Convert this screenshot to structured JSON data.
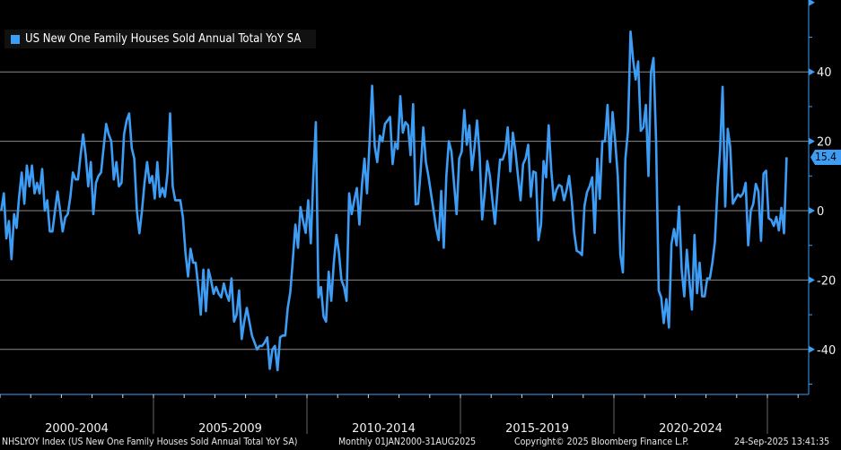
{
  "chart_data": {
    "type": "line",
    "title": "",
    "series": [
      {
        "name": "US New One Family Houses Sold Annual Total YoY SA",
        "color": "#3d9df5",
        "start": "2000-01",
        "frequency": "monthly",
        "values": [
          0,
          5,
          -8,
          -3,
          -14,
          -1,
          -5,
          4,
          11,
          2,
          13,
          7,
          13,
          5,
          8,
          5,
          12,
          0,
          3,
          -6,
          -6,
          0,
          5.5,
          0,
          -6,
          -2,
          -1,
          4,
          11,
          9,
          9,
          16,
          22,
          16,
          7,
          14,
          -1,
          8,
          10,
          11,
          18,
          25,
          22,
          20,
          9,
          14,
          7,
          8,
          22,
          26,
          28,
          18,
          15,
          0,
          -6.5,
          0,
          8,
          14,
          8,
          10,
          3.5,
          14,
          4,
          6.5,
          4,
          11,
          28,
          7,
          3,
          3,
          3,
          -2,
          -12,
          -19,
          -11,
          -15,
          -15,
          -22,
          -30,
          -17,
          -29,
          -17,
          -20,
          -24,
          -22,
          -24,
          -25,
          -21,
          -24,
          -26,
          -19.5,
          -32,
          -30,
          -23,
          -37,
          -32,
          -28,
          -32,
          -36,
          -38,
          -40,
          -39,
          -39,
          -38,
          -36.5,
          -45.6,
          -40,
          -39,
          -46,
          -36.5,
          -36,
          -36,
          -28,
          -23.6,
          -14,
          -4,
          -10.7,
          1,
          -3,
          -6.4,
          3,
          -9.4,
          10,
          25.5,
          -25,
          -22,
          -30.5,
          -32,
          -17.6,
          -26,
          -15,
          -7,
          -12,
          -20,
          -22,
          -26,
          5,
          -1,
          3,
          6.5,
          -4,
          7.4,
          15,
          5,
          20,
          36,
          18.6,
          14,
          21.6,
          20,
          25,
          26,
          27,
          13.4,
          19.5,
          17.8,
          33,
          22.5,
          25.5,
          24.6,
          16,
          30.7,
          1.8,
          2,
          12,
          24,
          14,
          10,
          5,
          0,
          -5,
          -8.5,
          5.7,
          -10.7,
          10,
          20,
          17,
          8,
          -1,
          15,
          17,
          29,
          19,
          24.6,
          11.7,
          18,
          26,
          16,
          -2.5,
          5,
          14.3,
          10,
          3,
          -3.8,
          6,
          14.7,
          14.7,
          17,
          24,
          11.3,
          22.5,
          17,
          10,
          3,
          13.4,
          15,
          19,
          4,
          11.3,
          10.9,
          -8.5,
          -4,
          14.3,
          9.6,
          24.6,
          12,
          3,
          6,
          7.4,
          7,
          3,
          6,
          10,
          3,
          -6.4,
          -11.6,
          -12,
          -12.8,
          1.4,
          5.3,
          7,
          9.6,
          -6.4,
          15,
          3.4,
          20,
          20,
          30.5,
          14,
          28.4,
          20,
          10,
          -12.6,
          -17.8,
          15,
          22.8,
          51.6,
          43.4,
          37.8,
          43,
          23,
          24,
          30.5,
          10,
          40,
          44,
          20,
          -23,
          -25,
          -32.4,
          -25.5,
          -33.7,
          -9.6,
          -5.3,
          -10,
          1.2,
          -17,
          -24.7,
          -11.3,
          -20,
          -28.5,
          -7,
          -23.8,
          -15,
          -24.7,
          -24.7,
          -19.5,
          -19.5,
          -15,
          -9,
          6.4,
          17.6,
          35.7,
          1.2,
          23.6,
          18.4,
          2,
          3.4,
          4.7,
          4,
          5,
          8,
          -10,
          0,
          2,
          7.7,
          5.5,
          -8.7,
          10.7,
          11.5,
          -2.2,
          -2.7,
          -4.4,
          -1.8,
          -5.7,
          0.8,
          -6.5,
          15.4
        ]
      }
    ],
    "last_value_label": "15.4",
    "y_ticks": [
      -40,
      -20,
      0,
      20,
      40
    ],
    "y_ticks_labels": [
      "-40",
      "-20",
      "0",
      "20",
      "40"
    ],
    "ylim": [
      -53,
      60
    ],
    "x_range": [
      "2000-01",
      "2025-08"
    ],
    "x_period_labels": [
      "2000-2004",
      "2005-2009",
      "2010-2014",
      "2015-2019",
      "2020-2024"
    ],
    "grid": true,
    "legend": "top-left",
    "y_axis_side": "right"
  },
  "legend": {
    "label": "US New One Family Houses Sold Annual Total YoY SA"
  },
  "footer": {
    "ticker": "NHSLYOY Index (US New One Family Houses Sold Annual Total YoY SA)",
    "range": "Monthly 01JAN2000-31AUG2025",
    "copyright": "Copyright© 2025 Bloomberg Finance L.P.",
    "timestamp": "24-Sep-2025 13:41:35"
  }
}
